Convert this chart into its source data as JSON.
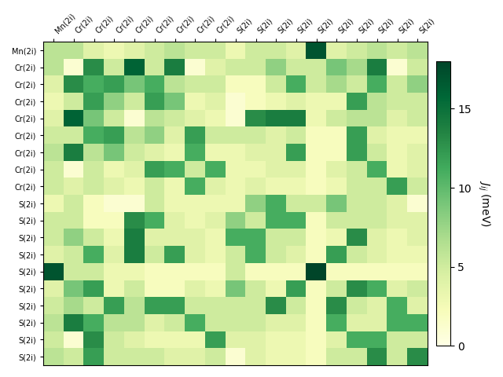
{
  "labels": [
    "Mn(2i)",
    "Cr(2i)",
    "Cr(2i)",
    "Cr(2i)",
    "Cr(2i)",
    "Cr(2i)",
    "Cr(2i)",
    "Cr(2i)",
    "Cr(2i)",
    "S(2i)",
    "S(2i)",
    "S(2i)",
    "S(2i)",
    "S(2i)",
    "S(2i)",
    "S(2i)",
    "S(2i)",
    "S(2i)",
    "S(2i)"
  ],
  "vmin": 0,
  "vmax": 18,
  "colorbar_ticks": [
    0,
    5,
    10,
    15
  ],
  "colorbar_label": "$J_{ij}$ (meV)",
  "cmap": "YlGn",
  "matrix": [
    [
      6,
      6,
      4,
      3,
      4,
      5,
      6,
      5,
      5,
      3,
      5,
      5,
      4,
      17,
      4,
      5,
      6,
      5,
      6
    ],
    [
      6,
      1,
      13,
      5,
      16,
      5,
      14,
      1,
      4,
      5,
      5,
      8,
      5,
      5,
      9,
      7,
      14,
      1,
      5
    ],
    [
      4,
      13,
      11,
      12,
      9,
      11,
      6,
      5,
      5,
      2,
      2,
      5,
      11,
      5,
      7,
      5,
      11,
      5,
      8
    ],
    [
      3,
      5,
      12,
      8,
      5,
      12,
      9,
      3,
      4,
      1,
      2,
      3,
      4,
      3,
      3,
      12,
      6,
      5,
      5
    ],
    [
      4,
      16,
      9,
      5,
      1,
      6,
      5,
      4,
      3,
      1,
      13,
      14,
      14,
      3,
      5,
      6,
      6,
      4,
      5
    ],
    [
      5,
      5,
      11,
      12,
      6,
      8,
      4,
      12,
      5,
      5,
      5,
      4,
      5,
      2,
      2,
      12,
      4,
      3,
      3
    ],
    [
      6,
      14,
      6,
      9,
      5,
      4,
      3,
      11,
      3,
      3,
      4,
      4,
      12,
      2,
      2,
      12,
      5,
      3,
      4
    ],
    [
      5,
      1,
      5,
      3,
      4,
      12,
      11,
      5,
      11,
      3,
      3,
      4,
      4,
      2,
      4,
      5,
      11,
      3,
      4
    ],
    [
      5,
      4,
      5,
      4,
      3,
      5,
      3,
      11,
      4,
      3,
      4,
      3,
      3,
      2,
      3,
      5,
      5,
      12,
      5
    ],
    [
      3,
      5,
      2,
      1,
      1,
      5,
      3,
      3,
      3,
      3,
      8,
      11,
      5,
      5,
      9,
      5,
      5,
      4,
      1
    ],
    [
      5,
      5,
      2,
      2,
      13,
      11,
      4,
      3,
      4,
      8,
      5,
      11,
      11,
      2,
      5,
      5,
      5,
      4,
      4
    ],
    [
      5,
      8,
      5,
      3,
      14,
      4,
      4,
      4,
      3,
      11,
      11,
      5,
      5,
      2,
      3,
      13,
      4,
      3,
      4
    ],
    [
      4,
      5,
      11,
      4,
      14,
      5,
      12,
      4,
      3,
      5,
      11,
      5,
      4,
      2,
      12,
      5,
      4,
      3,
      3
    ],
    [
      17,
      5,
      5,
      3,
      3,
      2,
      2,
      2,
      2,
      5,
      2,
      2,
      2,
      18,
      2,
      2,
      2,
      2,
      2
    ],
    [
      4,
      9,
      12,
      3,
      5,
      2,
      2,
      4,
      3,
      9,
      5,
      3,
      12,
      2,
      5,
      13,
      11,
      4,
      5
    ],
    [
      5,
      7,
      5,
      12,
      6,
      12,
      12,
      5,
      5,
      5,
      5,
      13,
      5,
      2,
      13,
      5,
      4,
      11,
      4
    ],
    [
      6,
      14,
      11,
      6,
      6,
      4,
      5,
      11,
      5,
      5,
      5,
      4,
      4,
      2,
      11,
      4,
      4,
      11,
      11
    ],
    [
      5,
      1,
      13,
      5,
      4,
      3,
      3,
      3,
      12,
      4,
      4,
      3,
      3,
      2,
      4,
      11,
      11,
      5,
      5
    ],
    [
      6,
      5,
      12,
      5,
      5,
      5,
      4,
      4,
      5,
      1,
      4,
      3,
      3,
      2,
      5,
      5,
      13,
      5,
      13
    ]
  ]
}
